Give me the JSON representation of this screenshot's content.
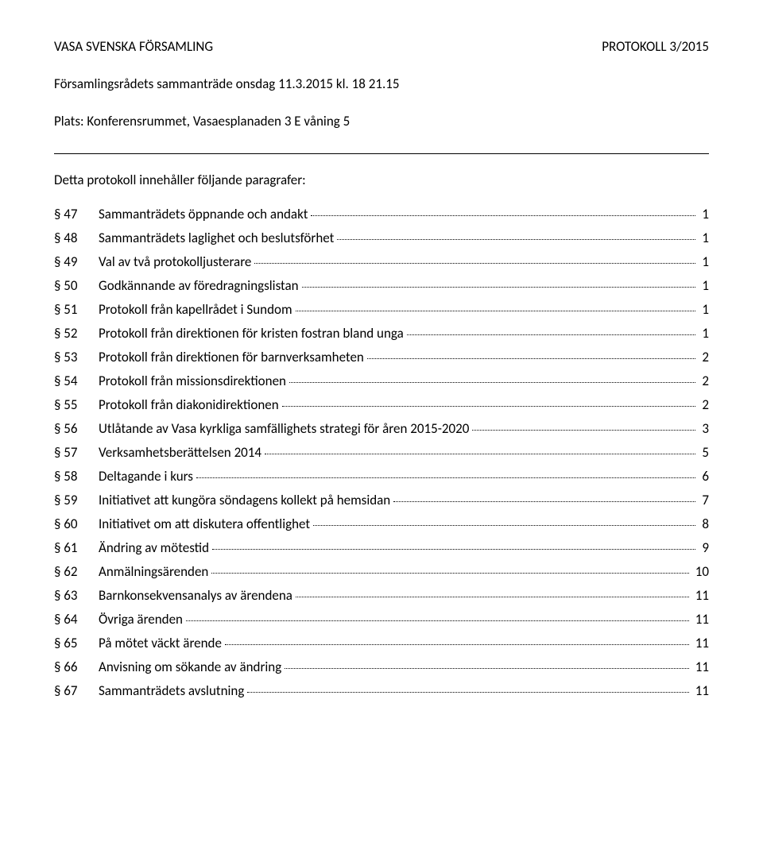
{
  "header": {
    "left": "VASA SVENSKA FÖRSAMLING",
    "right": "PROTOKOLL 3/2015"
  },
  "sub1": "Församlingsrådets sammanträde onsdag 11.3.2015 kl. 18 21.15",
  "sub2": "Plats: Konferensrummet, Vasaesplanaden 3 E våning 5",
  "intro": "Detta protokoll innehåller följande paragrafer:",
  "toc": [
    {
      "num": "§ 47",
      "title": "Sammanträdets öppnande och andakt",
      "page": "1"
    },
    {
      "num": "§ 48",
      "title": "Sammanträdets laglighet och beslutsförhet",
      "page": "1"
    },
    {
      "num": "§ 49",
      "title": "Val av två protokolljusterare",
      "page": "1"
    },
    {
      "num": "§ 50",
      "title": "Godkännande av föredragningslistan",
      "page": "1"
    },
    {
      "num": "§ 51",
      "title": "Protokoll från kapellrådet i Sundom",
      "page": "1"
    },
    {
      "num": "§ 52",
      "title": "Protokoll från direktionen för kristen fostran bland unga",
      "page": "1"
    },
    {
      "num": "§ 53",
      "title": "Protokoll från direktionen för barnverksamheten",
      "page": "2"
    },
    {
      "num": "§ 54",
      "title": "Protokoll från missionsdirektionen",
      "page": "2"
    },
    {
      "num": "§ 55",
      "title": "Protokoll från diakonidirektionen",
      "page": "2"
    },
    {
      "num": "§ 56",
      "title": "Utlåtande av Vasa kyrkliga samfällighets strategi för åren 2015-2020",
      "page": "3"
    },
    {
      "num": "§ 57",
      "title": "Verksamhetsberättelsen 2014",
      "page": "5"
    },
    {
      "num": "§ 58",
      "title": "Deltagande i kurs",
      "page": "6"
    },
    {
      "num": "§ 59",
      "title": "Initiativet att kungöra söndagens kollekt på hemsidan",
      "page": "7"
    },
    {
      "num": "§ 60",
      "title": "Initiativet om att diskutera offentlighet",
      "page": "8"
    },
    {
      "num": "§ 61",
      "title": "Ändring av mötestid",
      "page": "9"
    },
    {
      "num": "§ 62",
      "title": "Anmälningsärenden",
      "page": "10"
    },
    {
      "num": "§ 63",
      "title": "Barnkonsekvensanalys av ärendena",
      "page": "11"
    },
    {
      "num": "§ 64",
      "title": "Övriga ärenden",
      "page": "11"
    },
    {
      "num": "§ 65",
      "title": "På mötet väckt ärende",
      "page": "11"
    },
    {
      "num": "§ 66",
      "title": "Anvisning om sökande av ändring",
      "page": "11"
    },
    {
      "num": "§ 67",
      "title": "Sammanträdets avslutning",
      "page": "11"
    }
  ]
}
